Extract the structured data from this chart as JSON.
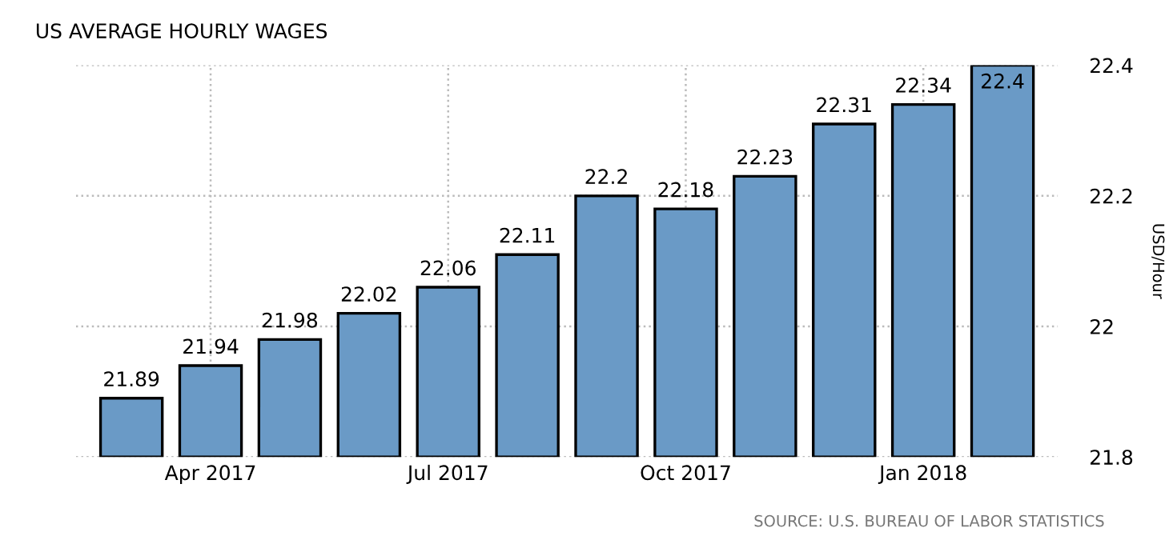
{
  "chart_data": {
    "type": "bar",
    "title": "US AVERAGE HOURLY WAGES",
    "ylabel": "USD/Hour",
    "categories": [
      null,
      "Apr 2017",
      null,
      null,
      "Jul 2017",
      null,
      null,
      "Oct 2017",
      null,
      null,
      "Jan 2018",
      null
    ],
    "values": [
      21.89,
      21.94,
      21.98,
      22.02,
      22.06,
      22.11,
      22.2,
      22.18,
      22.23,
      22.31,
      22.34,
      22.4
    ],
    "color": "#6a9ac6",
    "ylim": [
      21.8,
      22.4
    ],
    "yticks": [
      21.8,
      22,
      22.2,
      22.4
    ],
    "grid": true,
    "data_labels": true,
    "annotations": [
      "SOURCE: U.S. BUREAU OF LABOR STATISTICS"
    ]
  }
}
